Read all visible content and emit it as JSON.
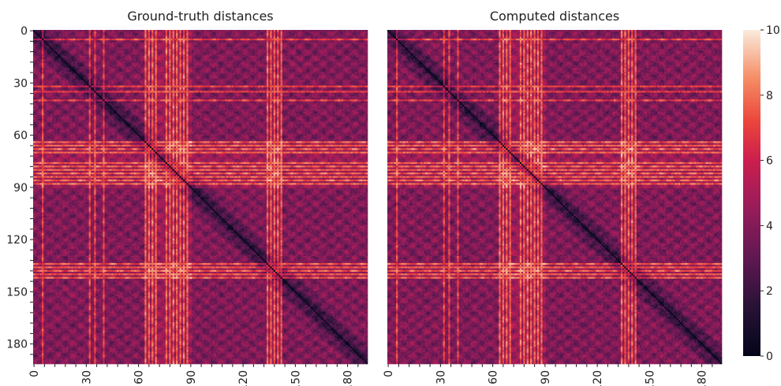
{
  "chart_data": [
    {
      "type": "heatmap",
      "title": "Ground-truth distances",
      "xlabel": "",
      "ylabel": "",
      "matrix_size": 192,
      "row_tick_labels": [
        "0",
        "30",
        "60",
        "90",
        "120",
        "150",
        "180"
      ],
      "col_tick_labels": [
        "0",
        "30",
        "60",
        "90",
        "120",
        "150",
        "180"
      ],
      "tick_values": [
        0,
        30,
        60,
        90,
        120,
        150,
        180
      ],
      "value_range": [
        0,
        10
      ],
      "diagonal_value": 0,
      "bright_bands": [
        5,
        32,
        35,
        40,
        64,
        66,
        68,
        70,
        76,
        78,
        80,
        82,
        84,
        86,
        88,
        134,
        136,
        138,
        140,
        142
      ],
      "description_of_values": "symmetric pairwise distance matrix; zero on diagonal; bright (high) bands at listed indices"
    },
    {
      "type": "heatmap",
      "title": "Computed distances",
      "xlabel": "",
      "ylabel": "",
      "matrix_size": 192,
      "col_tick_labels": [
        "0",
        "30",
        "60",
        "90",
        "120",
        "150",
        "180"
      ],
      "tick_values": [
        0,
        30,
        60,
        90,
        120,
        150,
        180
      ],
      "value_range": [
        0,
        10
      ],
      "diagonal_value": 0,
      "bright_bands": [
        5,
        32,
        35,
        40,
        64,
        66,
        68,
        70,
        76,
        78,
        80,
        82,
        84,
        86,
        88,
        134,
        136,
        138,
        140,
        142
      ]
    }
  ],
  "colorbar": {
    "ticks": [
      "0",
      "2",
      "4",
      "6",
      "8",
      "10"
    ],
    "tick_values": [
      0,
      2,
      4,
      6,
      8,
      10
    ],
    "min": 0,
    "max": 10,
    "colormap": "rocket"
  }
}
